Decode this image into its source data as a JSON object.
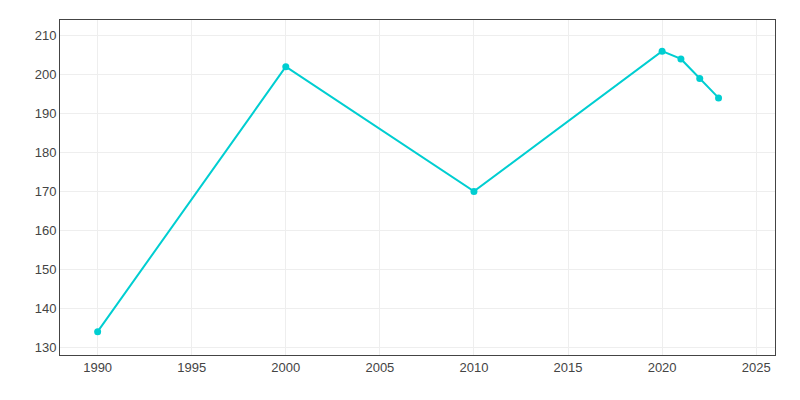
{
  "chart_data": {
    "type": "line",
    "x": [
      1990,
      2000,
      2010,
      2020,
      2021,
      2022,
      2023
    ],
    "values": [
      134,
      202,
      170,
      206,
      204,
      199,
      194
    ],
    "color": "#00CED1",
    "marker": "circle",
    "line_style": "solid",
    "xlim": [
      1988,
      2026
    ],
    "ylim": [
      128,
      214
    ],
    "xticks": [
      1990,
      1995,
      2000,
      2005,
      2010,
      2015,
      2020,
      2025
    ],
    "yticks": [
      130,
      140,
      150,
      160,
      170,
      180,
      190,
      200,
      210
    ],
    "grid": true
  }
}
